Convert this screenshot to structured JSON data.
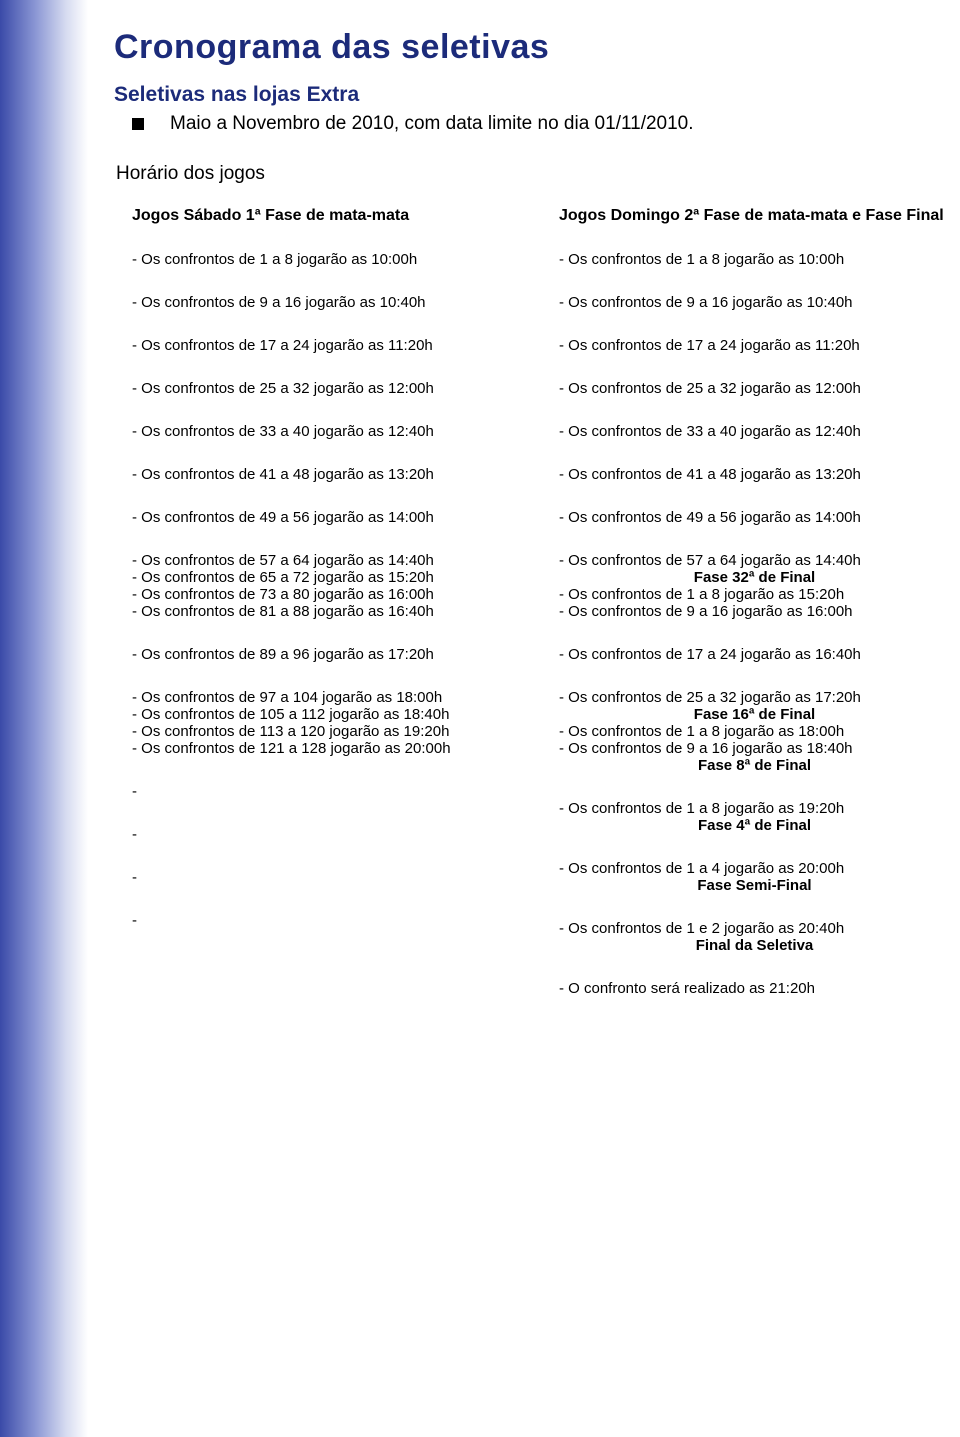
{
  "title": "Cronograma das seletivas",
  "subtitle": "Seletivas nas lojas Extra",
  "bullet_text": "Maio a Novembro de 2010, com data limite no dia 01/11/2010.",
  "horario_heading": "Horário dos jogos",
  "colors": {
    "brand": "#1c2b7a",
    "text": "#000000",
    "sidebar_grad_from": "#3a4aa8",
    "sidebar_grad_mid": "#8a96d4",
    "sidebar_grad_to": "#ffffff",
    "background": "#ffffff"
  },
  "typography": {
    "title_fontsize": 34,
    "subtitle_fontsize": 21,
    "bullet_fontsize": 19,
    "header_fontsize": 16,
    "line_fontsize": 15
  },
  "left": {
    "header": "Jogos  Sábado  1ª Fase de mata-mata",
    "groups": [
      [
        "- Os confrontos de 1 a 8 jogarão as 10:00h"
      ],
      [
        "- Os confrontos de  9 a 16  jogarão as 10:40h"
      ],
      [
        "- Os confrontos de 17 a 24 jogarão as 11:20h"
      ],
      [
        "- Os confrontos de 25 a 32 jogarão as 12:00h"
      ],
      [
        "- Os confrontos  de 33 a 40 jogarão as 12:40h"
      ],
      [
        "- Os confrontos de 41 a 48 jogarão as 13:20h"
      ],
      [
        "- Os confrontos de 49 a 56 jogarão as 14:00h"
      ],
      [
        "- Os confrontos de 57 a 64 jogarão as 14:40h",
        "- Os confrontos de 65 a 72 jogarão as 15:20h",
        "- Os confrontos de 73 a 80 jogarão as 16:00h",
        "- Os confrontos de 81 a 88 jogarão as 16:40h"
      ],
      [
        "- Os confrontos de 89 a 96 jogarão as 17:20h"
      ],
      [
        "- Os confrontos de 97 a 104 jogarão as 18:00h",
        "- Os confrontos de 105 a 112 jogarão as 18:40h",
        "- Os confrontos de 113 a 120 jogarão as 19:20h",
        "- Os confrontos de 121 a 128 jogarão as 20:00h"
      ],
      [
        "-"
      ],
      [
        "-"
      ],
      [
        "-"
      ],
      [
        "-"
      ]
    ]
  },
  "right": {
    "header": "Jogos Domingo  2ª Fase de mata-mata  e Fase Final",
    "groups": [
      [
        {
          "t": "- Os confrontos de 1 a 8 jogarão as 10:00h"
        }
      ],
      [
        {
          "t": "- Os confrontos de  9 a 16  jogarão as 10:40h"
        }
      ],
      [
        {
          "t": "- Os confrontos de 17 a 24 jogarão as 11:20h"
        }
      ],
      [
        {
          "t": "- Os confrontos de 25 a 32 jogarão as 12:00h"
        }
      ],
      [
        {
          "t": "- Os confrontos  de 33 a 40 jogarão as 12:40h"
        }
      ],
      [
        {
          "t": "- Os confrontos de 41 a 48 jogarão as 13:20h"
        }
      ],
      [
        {
          "t": "- Os confrontos de 49 a 56 jogarão as 14:00h"
        }
      ],
      [
        {
          "t": "- Os confrontos de 57 a 64 jogarão as 14:40h"
        },
        {
          "t": "Fase 32ª de Final",
          "bold": true,
          "center": true
        },
        {
          "t": "- Os confrontos de 1 a 8 jogarão as 15:20h"
        },
        {
          "t": "- Os confrontos de 9 a 16 jogarão as 16:00h"
        }
      ],
      [
        {
          "t": "- Os confrontos de 17 a 24 jogarão as 16:40h"
        }
      ],
      [
        {
          "t": "- Os confrontos de 25 a 32 jogarão as 17:20h"
        },
        {
          "t": "Fase 16ª de Final",
          "bold": true,
          "center": true
        },
        {
          "t": " - Os confrontos de 1 a 8 jogarão as 18:00h"
        },
        {
          "t": " - Os confrontos de 9 a 16 jogarão as 18:40h"
        },
        {
          "t": "Fase 8ª de Final",
          "bold": true,
          "center": true
        }
      ],
      [
        {
          "t": " - Os confrontos de 1 a 8 jogarão as 19:20h"
        },
        {
          "t": "Fase 4ª de Final",
          "bold": true,
          "center": true
        }
      ],
      [
        {
          "t": "- Os confrontos de 1 a 4 jogarão as 20:00h"
        },
        {
          "t": "Fase Semi-Final",
          "bold": true,
          "center": true
        }
      ],
      [
        {
          "t": "- Os confrontos de 1 e 2 jogarão as 20:40h"
        },
        {
          "t": "Final  da Seletiva",
          "bold": true,
          "center": true
        }
      ],
      [
        {
          "t": "- O confronto será realizado as 21:20h"
        }
      ]
    ]
  }
}
